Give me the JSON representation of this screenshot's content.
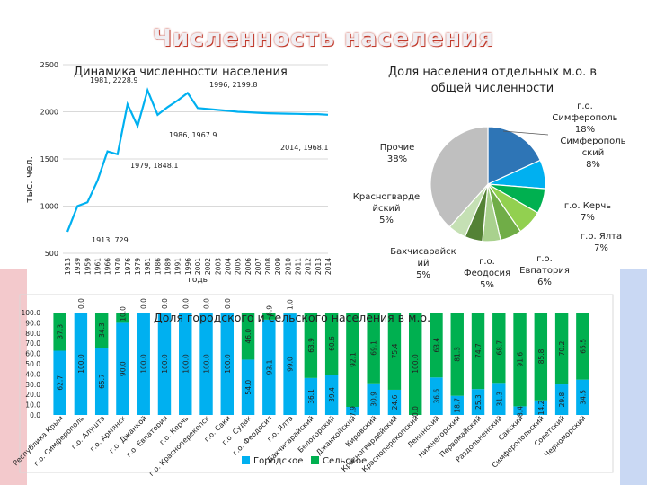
{
  "page_title": "Численность населения",
  "chart_data": [
    {
      "type": "line",
      "title": "Динамика численности населения",
      "ylabel": "тыс. чел.",
      "xlabel": "годы",
      "ylim": [
        500,
        2500
      ],
      "yticks": [
        500,
        1000,
        1500,
        2000,
        2500
      ],
      "x": [
        "1913",
        "1939",
        "1959",
        "1961",
        "1966",
        "1970",
        "1976",
        "1979",
        "1981",
        "1986",
        "1989",
        "1991",
        "1996",
        "2001",
        "2002",
        "2003",
        "2004",
        "2005",
        "2006",
        "2007",
        "2008",
        "2009",
        "2010",
        "2011",
        "2012",
        "2013",
        "2014"
      ],
      "values": [
        729,
        1000,
        1040,
        1270,
        1580,
        1550,
        2080,
        1848.1,
        2228.9,
        1967.9,
        2050,
        2120,
        2199.8,
        2040,
        2030,
        2020,
        2010,
        2000,
        1995,
        1990,
        1985,
        1982,
        1980,
        1978,
        1975,
        1975,
        1968.1
      ],
      "annotations": [
        {
          "label": "1913, 729"
        },
        {
          "label": "1979, 1848.1"
        },
        {
          "label": "1981, 2228.9"
        },
        {
          "label": "1986, 1967.9"
        },
        {
          "label": "1996, 2199.8"
        },
        {
          "label": "2014, 1968.1"
        }
      ],
      "color": "#00b0f0"
    },
    {
      "type": "pie",
      "title": "Доля населения отдельных м.о. в общей численности",
      "slices": [
        {
          "label": "г.о. Симферополь",
          "value": 18,
          "text": "18%",
          "color": "#2e75b6"
        },
        {
          "label": "Симферопольский",
          "value": 8,
          "text": "8%",
          "color": "#00b0f0"
        },
        {
          "label": "г.о. Керчь",
          "value": 7,
          "text": "7%",
          "color": "#00b050"
        },
        {
          "label": "г.о. Ялта",
          "value": 7,
          "text": "7%",
          "color": "#92d050"
        },
        {
          "label": "г.о. Евпатория",
          "value": 6,
          "text": "6%",
          "color": "#70ad47"
        },
        {
          "label": "г.о. Феодосия",
          "value": 5,
          "text": "5%",
          "color": "#a9d18e"
        },
        {
          "label": "Бахчисарайский",
          "value": 5,
          "text": "5%",
          "color": "#548235"
        },
        {
          "label": "Красногвардейский",
          "value": 5,
          "text": "5%",
          "color": "#c5e0b4"
        },
        {
          "label": "Прочие",
          "value": 38,
          "text": "38%",
          "color": "#bfbfbf"
        }
      ]
    },
    {
      "type": "bar",
      "stacked": true,
      "title": "Доля городского и сельского населения в м.о.",
      "ylim": [
        0,
        100
      ],
      "yticks": [
        "0.0",
        "10.0",
        "20.0",
        "30.0",
        "40.0",
        "50.0",
        "60.0",
        "70.0",
        "80.0",
        "90.0",
        "100.0"
      ],
      "categories": [
        "Республика Крым",
        "г.о. Симферополь",
        "г.о. Алушта",
        "г.о. Армянск",
        "г.о. Джанкой",
        "г.о. Евпатория",
        "г.о. Керчь",
        "г.о. Красноперекопск",
        "г.о. Саки",
        "г.о. Судак",
        "г.о. Феодосия",
        "г.о. Ялта",
        "Бахчисарайский",
        "Белогорский",
        "Джанкойский",
        "Кировский",
        "Красногвардейский",
        "Красноперекопский",
        "Ленинский",
        "Нижнегорский",
        "Первомайский",
        "Раздольненский",
        "Сакский",
        "Симферопольский",
        "Советский",
        "Черноморский"
      ],
      "series": [
        {
          "name": "Городское",
          "color": "#00b0f0",
          "values": [
            62.7,
            100.0,
            65.7,
            90.0,
            100.0,
            100.0,
            100.0,
            100.0,
            100.0,
            54.0,
            93.1,
            99.0,
            36.1,
            39.4,
            7.9,
            30.9,
            24.6,
            0.0,
            36.6,
            18.7,
            25.3,
            31.3,
            8.4,
            14.2,
            29.8,
            34.5
          ],
          "labels": [
            "62.7",
            "100.0",
            "65.7",
            "90.0",
            "100.0",
            "100.0",
            "100.0",
            "100.0",
            "100.0",
            "54.0",
            "93.1",
            "99.0",
            "36.1",
            "39.4",
            "7.9",
            "30.9",
            "24.6",
            "0.0",
            "36.6",
            "18.7",
            "25.3",
            "31.3",
            "8.4",
            "14.2",
            "29.8",
            "34.5"
          ]
        },
        {
          "name": "Сельское",
          "color": "#00b050",
          "values": [
            37.3,
            0.0,
            34.3,
            10.0,
            0.0,
            0.0,
            0.0,
            0.0,
            0.0,
            46.0,
            6.9,
            1.0,
            63.9,
            60.6,
            92.1,
            69.1,
            75.4,
            100.0,
            63.4,
            81.3,
            74.7,
            68.7,
            91.6,
            85.8,
            70.2,
            65.5
          ],
          "labels": [
            "37.3",
            "0.0",
            "34.3",
            "10.0",
            "0.0",
            "0.0",
            "0.0",
            "0.0",
            "0.0",
            "46.0",
            "6.9",
            "1.0",
            "63.9",
            "60.6",
            "92.1",
            "69.1",
            "75.4",
            "100.0",
            "63.4",
            "81.3",
            "74.7",
            "68.7",
            "91.6",
            "85.8",
            "70.2",
            "65.5"
          ]
        }
      ],
      "legend": "bottom"
    }
  ]
}
